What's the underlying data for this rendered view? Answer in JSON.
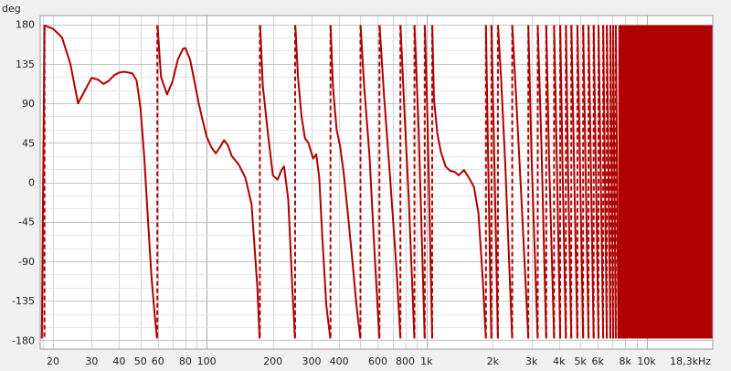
{
  "chart_data": {
    "type": "line",
    "title": "",
    "ylabel": "deg",
    "xlabel": "",
    "xscale": "log",
    "xlim": [
      17.5,
      20000
    ],
    "ylim": [
      -190,
      190
    ],
    "grid": true,
    "legend": "none",
    "y_ticks": [
      180,
      135,
      90,
      45,
      0,
      -45,
      -90,
      -135,
      -180
    ],
    "y_tick_labels": [
      "180",
      "135",
      "90",
      "45",
      "0",
      "-45",
      "-90",
      "-135",
      "-180"
    ],
    "x_ticks": [
      20,
      30,
      40,
      50,
      60,
      80,
      100,
      200,
      300,
      400,
      600,
      800,
      1000,
      2000,
      3000,
      4000,
      5000,
      6000,
      8000,
      10000,
      18300
    ],
    "x_tick_labels": [
      "20",
      "30",
      "40",
      "50",
      "60",
      "80",
      "100",
      "200",
      "300",
      "400",
      "600",
      "800",
      "1k",
      "2k",
      "3k",
      "4k",
      "5k",
      "6k",
      "8k",
      "10k",
      "18,3kHz"
    ],
    "x_grid_lines": [
      18,
      20,
      30,
      40,
      50,
      60,
      70,
      80,
      90,
      100,
      200,
      300,
      400,
      500,
      600,
      700,
      800,
      900,
      1000,
      2000,
      3000,
      4000,
      5000,
      6000,
      7000,
      8000,
      9000,
      10000
    ],
    "colors": {
      "line": "#b00000",
      "plot_bg": "#ffffff",
      "grid": "#d4d4d4",
      "major_grid": "#a8a8a8",
      "frame_bg": "#f0f0f0"
    },
    "series": [
      {
        "name": "",
        "segments": [
          {
            "x": [
              17.8,
              18.3
            ],
            "y": [
              -178,
              179
            ]
          },
          {
            "x": [
              18.3,
              19,
              20,
              22,
              24,
              26,
              28,
              30,
              32,
              34,
              36,
              38,
              40,
              42,
              44,
              46,
              48,
              50,
              52,
              54,
              56,
              58,
              59.5
            ],
            "y": [
              179,
              177,
              175,
              165,
              135,
              90,
              105,
              119,
              117,
              112,
              116,
              122,
              125,
              126,
              125,
              124,
              116,
              85,
              30,
              -40,
              -105,
              -150,
              -178
            ]
          },
          {
            "x": [
              59.8,
              62,
              66,
              70,
              74,
              78,
              80,
              84,
              88,
              92,
              96,
              100,
              105,
              110,
              115,
              120,
              125,
              130,
              140,
              150,
              160,
              170,
              174
            ],
            "y": [
              179,
              120,
              100,
              115,
              140,
              152,
              153,
              140,
              115,
              90,
              70,
              52,
              40,
              33,
              40,
              48,
              42,
              30,
              20,
              5,
              -25,
              -120,
              -178
            ]
          },
          {
            "x": [
              175,
              180,
              190,
              200,
              210,
              220,
              225,
              235,
              245,
              252
            ],
            "y": [
              179,
              110,
              55,
              8,
              3,
              15,
              18,
              -20,
              -120,
              -178
            ]
          },
          {
            "x": [
              253,
              260,
              270,
              280,
              290,
              305,
              315,
              325,
              335,
              350,
              365
            ],
            "y": [
              179,
              120,
              75,
              50,
              45,
              27,
              32,
              5,
              -60,
              -140,
              -178
            ]
          },
          {
            "x": [
              366,
              375,
              390,
              405,
              420,
              440,
              460,
              480,
              500
            ],
            "y": [
              179,
              110,
              60,
              40,
              10,
              -40,
              -90,
              -140,
              -178
            ]
          },
          {
            "x": [
              501,
              520,
              550,
              580,
              610
            ],
            "y": [
              179,
              110,
              30,
              -80,
              -178
            ]
          },
          {
            "x": [
              611,
              640,
              680,
              730,
              760
            ],
            "y": [
              179,
              100,
              10,
              -100,
              -178
            ]
          },
          {
            "x": [
              761,
              790,
              830,
              880
            ],
            "y": [
              179,
              90,
              -20,
              -178
            ]
          },
          {
            "x": [
              881,
              920,
              980
            ],
            "y": [
              179,
              60,
              -178
            ]
          },
          {
            "x": [
              981,
              1010,
              1060
            ],
            "y": [
              179,
              70,
              -178
            ]
          },
          {
            "x": [
              1061,
              1080,
              1120,
              1160,
              1220,
              1280,
              1340,
              1400,
              1480,
              1560,
              1640,
              1720,
              1800,
              1860
            ],
            "y": [
              179,
              95,
              55,
              35,
              18,
              13,
              12,
              8,
              14,
              5,
              -5,
              -35,
              -110,
              -178
            ]
          },
          {
            "x": [
              1861,
              1900,
              1970
            ],
            "y": [
              179,
              40,
              -178
            ]
          },
          {
            "x": [
              1971,
              2030,
              2110
            ],
            "y": [
              179,
              30,
              -178
            ]
          },
          {
            "x": [
              2111,
              2180,
              2280,
              2450
            ],
            "y": [
              179,
              120,
              20,
              -178
            ]
          },
          {
            "x": [
              2451,
              2550,
              2700,
              2900
            ],
            "y": [
              179,
              100,
              -20,
              -178
            ]
          },
          {
            "x": [
              2901,
              3000,
              3200
            ],
            "y": [
              179,
              30,
              -178
            ]
          },
          {
            "x": [
              3201,
              3330,
              3500
            ],
            "y": [
              179,
              40,
              -178
            ]
          },
          {
            "x": [
              3501,
              3600,
              3800
            ],
            "y": [
              179,
              30,
              -178
            ]
          },
          {
            "x": [
              3801,
              3900,
              4050
            ],
            "y": [
              179,
              40,
              -178
            ]
          },
          {
            "x": [
              4051,
              4150,
              4300
            ],
            "y": [
              179,
              20,
              -178
            ]
          },
          {
            "x": [
              4301,
              4400,
              4550
            ],
            "y": [
              179,
              10,
              -178
            ]
          },
          {
            "x": [
              4551,
              4650,
              4750,
              4850
            ],
            "y": [
              179,
              60,
              -60,
              -178
            ]
          },
          {
            "x": [
              4851,
              5150
            ],
            "y": [
              179,
              -178
            ]
          },
          {
            "x": [
              5151,
              5450
            ],
            "y": [
              179,
              -178
            ]
          },
          {
            "x": [
              5451,
              5750
            ],
            "y": [
              179,
              -178
            ]
          },
          {
            "x": [
              5751,
              6050
            ],
            "y": [
              179,
              -178
            ]
          },
          {
            "x": [
              6051,
              6350
            ],
            "y": [
              179,
              -178
            ]
          },
          {
            "x": [
              6351,
              6600
            ],
            "y": [
              179,
              -178
            ]
          },
          {
            "x": [
              6601,
              6850
            ],
            "y": [
              179,
              -178
            ]
          },
          {
            "x": [
              6851,
              7050
            ],
            "y": [
              179,
              -178
            ]
          },
          {
            "x": [
              7051,
              7250
            ],
            "y": [
              179,
              -178
            ]
          },
          {
            "x": [
              7251,
              7450
            ],
            "y": [
              179,
              -178
            ]
          }
        ],
        "dense_band": {
          "x_from": 7450,
          "x_to": 20000,
          "y_from": -178,
          "y_to": 179
        }
      }
    ]
  }
}
